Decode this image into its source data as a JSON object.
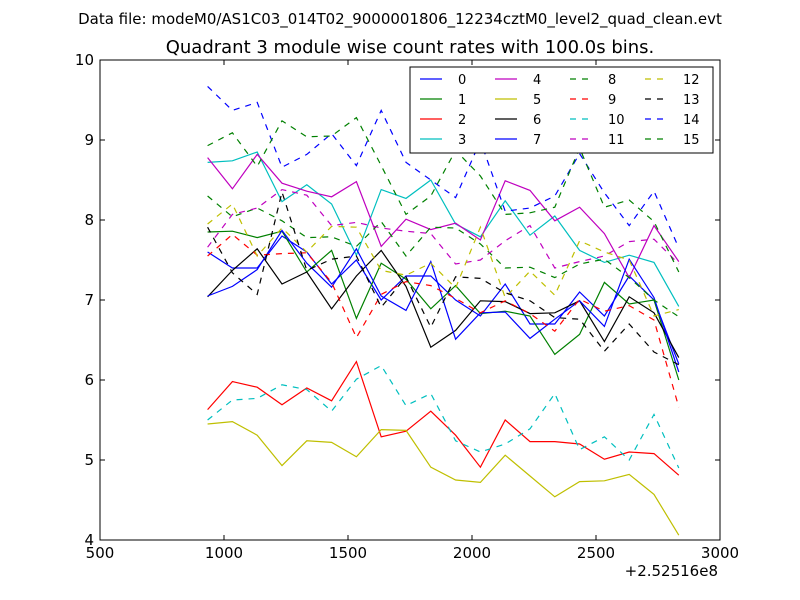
{
  "figure": {
    "suptitle": "Data file: modeM0/AS1C03_014T02_9000001806_12234cztM0_level2_quad_clean.evt",
    "x_offset_text": "+2.52516e8"
  },
  "chart_data": {
    "type": "line",
    "title": "Quadrant 3 module wise count rates with 100.0s bins.",
    "xlabel": "",
    "ylabel": "",
    "xlim": [
      500,
      3000
    ],
    "ylim": [
      4,
      10
    ],
    "xticks": [
      "500",
      "1000",
      "1500",
      "2000",
      "2500",
      "3000"
    ],
    "yticks": [
      "4",
      "5",
      "6",
      "7",
      "8",
      "9",
      "10"
    ],
    "grid": false,
    "legend_position": "top-right",
    "legend_columns": 4,
    "x": [
      934,
      1034,
      1134,
      1234,
      1334,
      1434,
      1534,
      1634,
      1734,
      1834,
      1934,
      2034,
      2134,
      2234,
      2334,
      2434,
      2534,
      2634,
      2734,
      2834
    ],
    "series": [
      {
        "name": "0",
        "color": "#0000ff",
        "dash": "solid",
        "values": [
          7.6,
          7.4,
          7.4,
          7.8,
          7.6,
          7.2,
          7.5,
          7.0,
          7.3,
          7.3,
          7.0,
          6.8,
          7.2,
          6.7,
          6.7,
          7.1,
          6.8,
          7.3,
          7.0,
          6.2
        ]
      },
      {
        "name": "1",
        "color": "#008000",
        "dash": "solid",
        "values": [
          7.85,
          7.86,
          7.78,
          7.86,
          7.35,
          7.62,
          6.77,
          7.46,
          7.26,
          6.89,
          7.18,
          6.83,
          6.86,
          6.8,
          6.32,
          6.57,
          7.22,
          6.95,
          7.0,
          6.0
        ]
      },
      {
        "name": "2",
        "color": "#ff0000",
        "dash": "solid",
        "values": [
          5.63,
          5.98,
          5.91,
          5.69,
          5.9,
          5.74,
          6.23,
          5.29,
          5.36,
          5.61,
          5.31,
          4.91,
          5.5,
          5.23,
          5.23,
          5.2,
          5.01,
          5.1,
          5.08,
          4.81
        ]
      },
      {
        "name": "3",
        "color": "#00bfbf",
        "dash": "solid",
        "values": [
          8.72,
          8.74,
          8.85,
          8.23,
          8.44,
          8.2,
          7.56,
          8.38,
          8.27,
          8.5,
          7.95,
          7.79,
          8.24,
          7.81,
          8.05,
          7.62,
          7.47,
          7.56,
          7.47,
          6.92
        ]
      },
      {
        "name": "4",
        "color": "#bf00bf",
        "dash": "solid",
        "values": [
          8.78,
          8.39,
          8.82,
          8.46,
          8.36,
          8.29,
          8.48,
          7.67,
          8.01,
          7.88,
          7.96,
          7.75,
          8.49,
          8.37,
          7.99,
          8.16,
          7.83,
          7.28,
          7.93,
          7.48
        ]
      },
      {
        "name": "5",
        "color": "#bfbf00",
        "dash": "solid",
        "values": [
          5.45,
          5.48,
          5.31,
          4.93,
          5.24,
          5.22,
          5.04,
          5.38,
          5.37,
          4.91,
          4.75,
          4.72,
          5.06,
          4.8,
          4.54,
          4.73,
          4.74,
          4.82,
          4.57,
          4.06
        ]
      },
      {
        "name": "6",
        "color": "#000000",
        "dash": "solid",
        "values": [
          7.04,
          7.37,
          7.64,
          7.2,
          7.35,
          6.89,
          7.3,
          7.62,
          7.17,
          6.41,
          6.62,
          6.99,
          6.98,
          6.83,
          6.84,
          6.99,
          6.48,
          7.04,
          6.84,
          6.28
        ]
      },
      {
        "name": "7",
        "color": "#0000ff",
        "dash": "solid",
        "values": [
          7.05,
          7.17,
          7.38,
          7.87,
          7.46,
          7.16,
          7.64,
          7.05,
          6.87,
          7.48,
          6.51,
          6.84,
          6.85,
          6.52,
          6.76,
          6.99,
          6.67,
          7.51,
          7.03,
          6.1
        ]
      },
      {
        "name": "8",
        "color": "#008000",
        "dash": "dashed",
        "values": [
          8.3,
          8.04,
          8.15,
          7.99,
          7.78,
          7.79,
          7.67,
          7.98,
          7.55,
          7.91,
          7.9,
          7.7,
          7.4,
          7.41,
          7.28,
          7.45,
          7.51,
          7.28,
          7.0,
          6.79
        ]
      },
      {
        "name": "9",
        "color": "#ff0000",
        "dash": "dashed",
        "values": [
          7.55,
          7.82,
          7.56,
          7.58,
          7.59,
          7.22,
          6.53,
          7.07,
          7.23,
          7.18,
          7.02,
          6.84,
          6.99,
          6.83,
          6.61,
          7.01,
          6.86,
          6.93,
          6.75,
          5.66
        ]
      },
      {
        "name": "10",
        "color": "#00bfbf",
        "dash": "dashed",
        "values": [
          5.5,
          5.75,
          5.77,
          5.94,
          5.88,
          5.61,
          6.01,
          6.18,
          5.68,
          5.83,
          5.24,
          5.1,
          5.2,
          5.39,
          5.83,
          5.13,
          5.29,
          5.0,
          5.57,
          4.9
        ]
      },
      {
        "name": "11",
        "color": "#bf00bf",
        "dash": "dashed",
        "values": [
          7.66,
          8.07,
          8.15,
          8.38,
          8.31,
          7.93,
          7.97,
          7.9,
          7.86,
          7.83,
          7.45,
          7.5,
          7.74,
          7.93,
          7.4,
          7.48,
          7.55,
          7.73,
          7.76,
          7.45
        ]
      },
      {
        "name": "12",
        "color": "#bfbf00",
        "dash": "dashed",
        "values": [
          7.95,
          8.2,
          7.55,
          7.9,
          7.6,
          7.92,
          7.91,
          7.37,
          7.31,
          7.46,
          7.15,
          7.91,
          7.03,
          7.36,
          7.06,
          7.74,
          7.6,
          7.5,
          6.8,
          6.88
        ]
      },
      {
        "name": "13",
        "color": "#000000",
        "dash": "dashed",
        "values": [
          7.91,
          7.34,
          7.07,
          8.35,
          7.37,
          7.51,
          7.55,
          6.91,
          7.29,
          6.66,
          7.29,
          7.27,
          7.09,
          6.99,
          6.78,
          6.76,
          6.36,
          6.7,
          6.35,
          6.19
        ]
      },
      {
        "name": "14",
        "color": "#0000ff",
        "dash": "dashed",
        "values": [
          9.67,
          9.37,
          9.47,
          8.66,
          8.82,
          9.08,
          8.68,
          9.37,
          8.72,
          8.5,
          8.28,
          8.99,
          8.11,
          8.15,
          8.3,
          8.83,
          8.34,
          7.93,
          8.36,
          7.65
        ]
      },
      {
        "name": "15",
        "color": "#008000",
        "dash": "dashed",
        "values": [
          8.93,
          9.09,
          8.67,
          9.24,
          9.04,
          9.05,
          9.28,
          8.68,
          8.07,
          8.3,
          8.87,
          8.55,
          8.07,
          8.09,
          8.16,
          8.9,
          8.16,
          8.25,
          7.98,
          7.35
        ]
      }
    ]
  }
}
